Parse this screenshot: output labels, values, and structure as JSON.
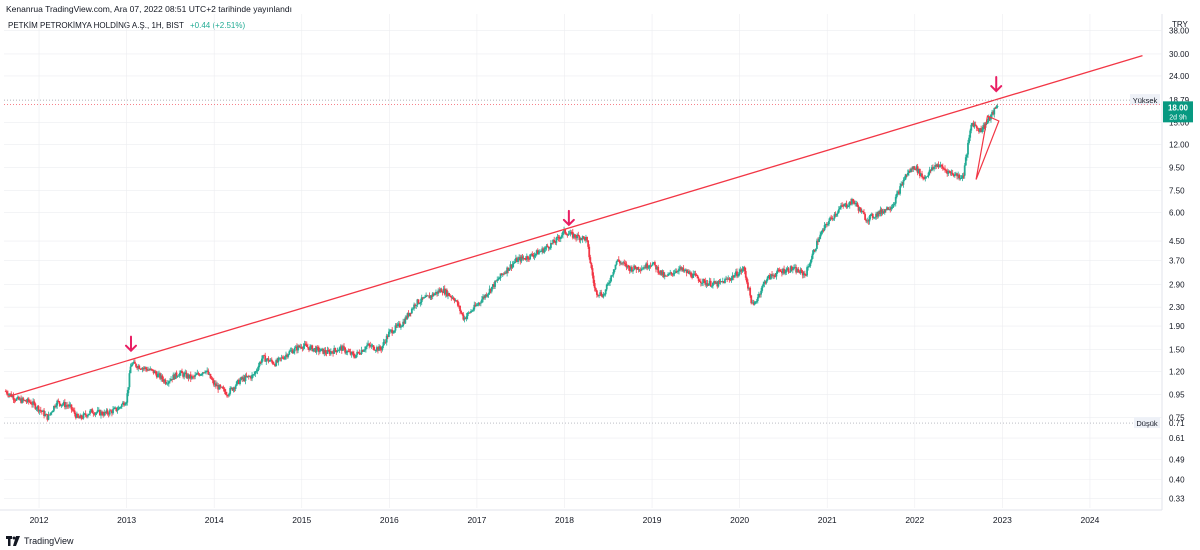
{
  "header": {
    "caption": "Kenanrua TradingView.com, Ara 07, 2022 08:51 UTC+2 tarihinde yayınlandı",
    "symbol": "PETKİM PETROKİMYA HOLDİNG A.Ş., 1H, BIST",
    "change": "+0.44 (+2.51%)"
  },
  "footer": {
    "brand": "TradingView"
  },
  "chart_data": {
    "type": "candlestick",
    "currency_label": "TRY",
    "scale": "log",
    "ylim": [
      0.3,
      45
    ],
    "y_ticks": [
      {
        "v": 38.0,
        "label": "38.00"
      },
      {
        "v": 30.0,
        "label": "30.00"
      },
      {
        "v": 24.0,
        "label": "24.00"
      },
      {
        "v": 15.0,
        "label": "15.00"
      },
      {
        "v": 12.0,
        "label": "12.00"
      },
      {
        "v": 9.5,
        "label": "9.50"
      },
      {
        "v": 7.5,
        "label": "7.50"
      },
      {
        "v": 6.0,
        "label": "6.00"
      },
      {
        "v": 4.5,
        "label": "4.50"
      },
      {
        "v": 3.7,
        "label": "3.70"
      },
      {
        "v": 2.9,
        "label": "2.90"
      },
      {
        "v": 2.3,
        "label": "2.30"
      },
      {
        "v": 1.9,
        "label": "1.90"
      },
      {
        "v": 1.5,
        "label": "1.50"
      },
      {
        "v": 1.2,
        "label": "1.20"
      },
      {
        "v": 0.95,
        "label": "0.95"
      },
      {
        "v": 0.75,
        "label": "0.75"
      },
      {
        "v": 0.61,
        "label": "0.61"
      },
      {
        "v": 0.49,
        "label": "0.49"
      },
      {
        "v": 0.4,
        "label": "0.40"
      },
      {
        "v": 0.33,
        "label": "0.33"
      }
    ],
    "x_ticks": [
      "2012",
      "2013",
      "2014",
      "2015",
      "2016",
      "2017",
      "2018",
      "2019",
      "2020",
      "2021",
      "2022",
      "2023",
      "2024"
    ],
    "x_range": [
      2011.6,
      2024.8
    ],
    "high_marker": {
      "label": "Yüksek",
      "value": 18.79,
      "text": "18.79"
    },
    "low_marker": {
      "label": "Düşük",
      "value": 0.71,
      "text": "0.71"
    },
    "last_price": {
      "value": 18.0,
      "text": "18.00",
      "countdown": "2d 9h"
    },
    "price_path": [
      [
        2011.62,
        0.98
      ],
      [
        2011.75,
        0.9
      ],
      [
        2011.9,
        0.88
      ],
      [
        2012.0,
        0.82
      ],
      [
        2012.1,
        0.75
      ],
      [
        2012.2,
        0.88
      ],
      [
        2012.35,
        0.84
      ],
      [
        2012.45,
        0.74
      ],
      [
        2012.6,
        0.8
      ],
      [
        2012.75,
        0.78
      ],
      [
        2012.9,
        0.82
      ],
      [
        2013.0,
        0.9
      ],
      [
        2013.05,
        1.3
      ],
      [
        2013.15,
        1.26
      ],
      [
        2013.3,
        1.2
      ],
      [
        2013.45,
        1.08
      ],
      [
        2013.6,
        1.18
      ],
      [
        2013.75,
        1.12
      ],
      [
        2013.9,
        1.22
      ],
      [
        2014.0,
        1.05
      ],
      [
        2014.15,
        0.96
      ],
      [
        2014.3,
        1.1
      ],
      [
        2014.45,
        1.15
      ],
      [
        2014.55,
        1.38
      ],
      [
        2014.7,
        1.3
      ],
      [
        2014.85,
        1.45
      ],
      [
        2015.0,
        1.56
      ],
      [
        2015.15,
        1.5
      ],
      [
        2015.3,
        1.45
      ],
      [
        2015.45,
        1.52
      ],
      [
        2015.6,
        1.4
      ],
      [
        2015.75,
        1.56
      ],
      [
        2015.9,
        1.5
      ],
      [
        2016.0,
        1.78
      ],
      [
        2016.15,
        1.95
      ],
      [
        2016.3,
        2.4
      ],
      [
        2016.45,
        2.55
      ],
      [
        2016.6,
        2.75
      ],
      [
        2016.75,
        2.5
      ],
      [
        2016.85,
        2.05
      ],
      [
        2017.0,
        2.35
      ],
      [
        2017.15,
        2.75
      ],
      [
        2017.3,
        3.25
      ],
      [
        2017.45,
        3.7
      ],
      [
        2017.6,
        3.85
      ],
      [
        2017.75,
        4.1
      ],
      [
        2017.9,
        4.5
      ],
      [
        2018.0,
        4.95
      ],
      [
        2018.1,
        4.75
      ],
      [
        2018.25,
        4.6
      ],
      [
        2018.35,
        2.7
      ],
      [
        2018.45,
        2.6
      ],
      [
        2018.6,
        3.7
      ],
      [
        2018.75,
        3.4
      ],
      [
        2018.9,
        3.45
      ],
      [
        2019.0,
        3.6
      ],
      [
        2019.15,
        3.1
      ],
      [
        2019.3,
        3.4
      ],
      [
        2019.45,
        3.2
      ],
      [
        2019.6,
        2.95
      ],
      [
        2019.75,
        2.9
      ],
      [
        2019.9,
        3.1
      ],
      [
        2020.05,
        3.4
      ],
      [
        2020.15,
        2.3
      ],
      [
        2020.3,
        3.05
      ],
      [
        2020.45,
        3.3
      ],
      [
        2020.6,
        3.4
      ],
      [
        2020.75,
        3.2
      ],
      [
        2020.9,
        4.6
      ],
      [
        2021.0,
        5.4
      ],
      [
        2021.15,
        6.3
      ],
      [
        2021.3,
        6.75
      ],
      [
        2021.45,
        5.6
      ],
      [
        2021.6,
        6.0
      ],
      [
        2021.75,
        6.5
      ],
      [
        2021.9,
        8.8
      ],
      [
        2022.0,
        9.6
      ],
      [
        2022.1,
        8.5
      ],
      [
        2022.25,
        9.8
      ],
      [
        2022.4,
        9.0
      ],
      [
        2022.55,
        8.6
      ],
      [
        2022.65,
        15.0
      ],
      [
        2022.75,
        13.8
      ],
      [
        2022.85,
        15.5
      ],
      [
        2022.95,
        18.0
      ]
    ],
    "annotations": {
      "resistance_line": {
        "from": [
          2011.65,
          0.93
        ],
        "to": [
          2024.6,
          29.5
        ],
        "color": "#f23645"
      },
      "arrows": [
        {
          "x": 2013.05,
          "y": 1.48
        },
        {
          "x": 2018.05,
          "y": 5.3
        },
        {
          "x": 2022.93,
          "y": 20.6
        }
      ],
      "triangle": [
        [
          2022.83,
          16.0
        ],
        [
          2022.96,
          15.2
        ],
        [
          2022.7,
          8.4
        ]
      ]
    },
    "colors": {
      "up": "#22ab94",
      "down": "#f23645",
      "annotation": "#f23645",
      "arrow": "#e91e63",
      "axis_text": "#131722",
      "grid": "#ecedf0"
    }
  }
}
